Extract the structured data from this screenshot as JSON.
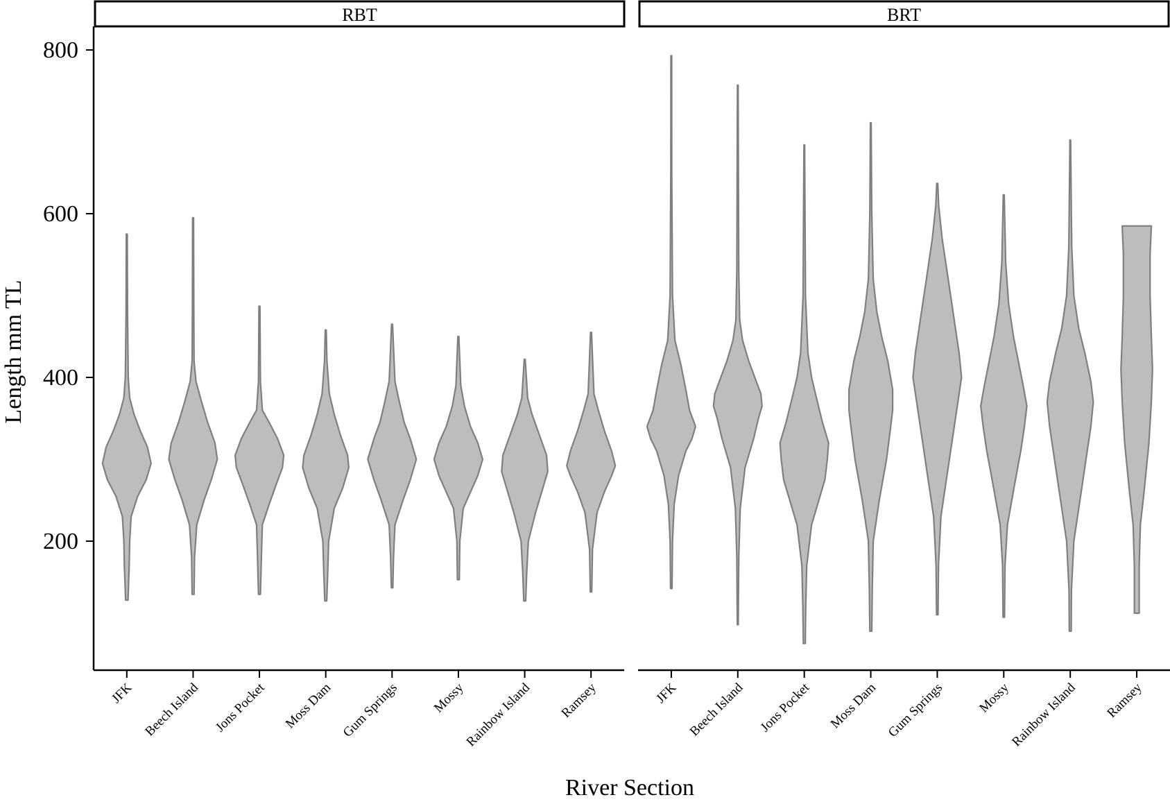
{
  "chart_data": {
    "type": "violin",
    "xlabel": "River Section",
    "ylabel": "Length mm TL",
    "ylim": [
      50,
      850
    ],
    "yticks": [
      200,
      400,
      600,
      800
    ],
    "categories": [
      "JFK",
      "Beech Island",
      "Jons Pocket",
      "Moss Dam",
      "Gum Springs",
      "Mossy",
      "Rainbow Island",
      "Ramsey"
    ],
    "panels": [
      {
        "label": "RBT",
        "violins": [
          {
            "category": "JFK",
            "min": 128,
            "max": 575,
            "profile": [
              [
                128,
                0.05
              ],
              [
                170,
                0.1
              ],
              [
                200,
                0.12
              ],
              [
                230,
                0.18
              ],
              [
                255,
                0.45
              ],
              [
                275,
                0.8
              ],
              [
                295,
                1.0
              ],
              [
                315,
                0.85
              ],
              [
                335,
                0.55
              ],
              [
                355,
                0.3
              ],
              [
                375,
                0.12
              ],
              [
                400,
                0.06
              ],
              [
                480,
                0.03
              ],
              [
                575,
                0.02
              ]
            ]
          },
          {
            "category": "Beech Island",
            "min": 135,
            "max": 595,
            "profile": [
              [
                135,
                0.04
              ],
              [
                180,
                0.06
              ],
              [
                220,
                0.15
              ],
              [
                250,
                0.45
              ],
              [
                275,
                0.75
              ],
              [
                300,
                1.0
              ],
              [
                320,
                0.9
              ],
              [
                345,
                0.6
              ],
              [
                370,
                0.35
              ],
              [
                395,
                0.12
              ],
              [
                420,
                0.04
              ],
              [
                480,
                0.03
              ],
              [
                595,
                0.02
              ]
            ]
          },
          {
            "category": "Jons Pocket",
            "min": 135,
            "max": 487,
            "profile": [
              [
                135,
                0.04
              ],
              [
                180,
                0.08
              ],
              [
                220,
                0.12
              ],
              [
                245,
                0.4
              ],
              [
                270,
                0.7
              ],
              [
                290,
                0.95
              ],
              [
                305,
                1.0
              ],
              [
                325,
                0.75
              ],
              [
                345,
                0.4
              ],
              [
                360,
                0.12
              ],
              [
                395,
                0.04
              ],
              [
                487,
                0.02
              ]
            ]
          },
          {
            "category": "Moss Dam",
            "min": 127,
            "max": 458,
            "profile": [
              [
                127,
                0.04
              ],
              [
                160,
                0.08
              ],
              [
                200,
                0.12
              ],
              [
                240,
                0.35
              ],
              [
                265,
                0.7
              ],
              [
                290,
                0.95
              ],
              [
                305,
                0.9
              ],
              [
                330,
                0.6
              ],
              [
                355,
                0.35
              ],
              [
                380,
                0.15
              ],
              [
                420,
                0.05
              ],
              [
                458,
                0.02
              ]
            ]
          },
          {
            "category": "Gum Springs",
            "min": 143,
            "max": 465,
            "profile": [
              [
                143,
                0.03
              ],
              [
                180,
                0.06
              ],
              [
                220,
                0.12
              ],
              [
                250,
                0.45
              ],
              [
                275,
                0.75
              ],
              [
                300,
                1.0
              ],
              [
                325,
                0.75
              ],
              [
                345,
                0.5
              ],
              [
                370,
                0.3
              ],
              [
                395,
                0.12
              ],
              [
                465,
                0.02
              ]
            ]
          },
          {
            "category": "Mossy",
            "min": 153,
            "max": 450,
            "profile": [
              [
                153,
                0.04
              ],
              [
                200,
                0.06
              ],
              [
                240,
                0.2
              ],
              [
                260,
                0.5
              ],
              [
                280,
                0.8
              ],
              [
                300,
                1.0
              ],
              [
                320,
                0.8
              ],
              [
                340,
                0.5
              ],
              [
                365,
                0.25
              ],
              [
                390,
                0.1
              ],
              [
                450,
                0.02
              ]
            ]
          },
          {
            "category": "Rainbow Island",
            "min": 127,
            "max": 422,
            "profile": [
              [
                127,
                0.04
              ],
              [
                160,
                0.08
              ],
              [
                200,
                0.15
              ],
              [
                235,
                0.45
              ],
              [
                265,
                0.75
              ],
              [
                285,
                0.95
              ],
              [
                305,
                0.9
              ],
              [
                330,
                0.6
              ],
              [
                355,
                0.3
              ],
              [
                375,
                0.12
              ],
              [
                422,
                0.02
              ]
            ]
          },
          {
            "category": "Ramsey",
            "min": 138,
            "max": 455,
            "profile": [
              [
                138,
                0.03
              ],
              [
                190,
                0.06
              ],
              [
                235,
                0.25
              ],
              [
                260,
                0.55
              ],
              [
                280,
                0.85
              ],
              [
                292,
                1.0
              ],
              [
                310,
                0.85
              ],
              [
                335,
                0.55
              ],
              [
                360,
                0.3
              ],
              [
                380,
                0.12
              ],
              [
                455,
                0.02
              ]
            ]
          }
        ]
      },
      {
        "label": "BRT",
        "violins": [
          {
            "category": "JFK",
            "min": 142,
            "max": 793,
            "profile": [
              [
                142,
                0.03
              ],
              [
                200,
                0.05
              ],
              [
                245,
                0.12
              ],
              [
                280,
                0.3
              ],
              [
                310,
                0.6
              ],
              [
                325,
                0.85
              ],
              [
                340,
                1.0
              ],
              [
                360,
                0.75
              ],
              [
                385,
                0.6
              ],
              [
                415,
                0.4
              ],
              [
                445,
                0.15
              ],
              [
                500,
                0.05
              ],
              [
                650,
                0.02
              ],
              [
                793,
                0.015
              ]
            ]
          },
          {
            "category": "Beech Island",
            "min": 98,
            "max": 757,
            "profile": [
              [
                98,
                0.02
              ],
              [
                180,
                0.04
              ],
              [
                240,
                0.1
              ],
              [
                290,
                0.3
              ],
              [
                325,
                0.65
              ],
              [
                350,
                0.85
              ],
              [
                365,
                1.0
              ],
              [
                380,
                0.95
              ],
              [
                400,
                0.7
              ],
              [
                420,
                0.45
              ],
              [
                445,
                0.2
              ],
              [
                470,
                0.08
              ],
              [
                530,
                0.04
              ],
              [
                757,
                0.015
              ]
            ]
          },
          {
            "category": "Jons Pocket",
            "min": 75,
            "max": 684,
            "profile": [
              [
                75,
                0.04
              ],
              [
                120,
                0.06
              ],
              [
                170,
                0.1
              ],
              [
                220,
                0.3
              ],
              [
                250,
                0.6
              ],
              [
                275,
                0.85
              ],
              [
                300,
                0.95
              ],
              [
                320,
                1.0
              ],
              [
                345,
                0.75
              ],
              [
                375,
                0.5
              ],
              [
                400,
                0.3
              ],
              [
                430,
                0.15
              ],
              [
                500,
                0.05
              ],
              [
                684,
                0.015
              ]
            ]
          },
          {
            "category": "Moss Dam",
            "min": 90,
            "max": 711,
            "profile": [
              [
                90,
                0.04
              ],
              [
                140,
                0.06
              ],
              [
                200,
                0.1
              ],
              [
                250,
                0.35
              ],
              [
                300,
                0.65
              ],
              [
                335,
                0.8
              ],
              [
                360,
                0.9
              ],
              [
                385,
                0.9
              ],
              [
                420,
                0.7
              ],
              [
                450,
                0.45
              ],
              [
                480,
                0.25
              ],
              [
                520,
                0.1
              ],
              [
                600,
                0.04
              ],
              [
                711,
                0.015
              ]
            ]
          },
          {
            "category": "Gum Springs",
            "min": 110,
            "max": 637,
            "profile": [
              [
                110,
                0.03
              ],
              [
                170,
                0.05
              ],
              [
                230,
                0.15
              ],
              [
                280,
                0.4
              ],
              [
                330,
                0.65
              ],
              [
                370,
                0.85
              ],
              [
                400,
                1.0
              ],
              [
                430,
                0.9
              ],
              [
                470,
                0.7
              ],
              [
                520,
                0.45
              ],
              [
                570,
                0.2
              ],
              [
                610,
                0.06
              ],
              [
                637,
                0.02
              ]
            ]
          },
          {
            "category": "Mossy",
            "min": 107,
            "max": 623,
            "profile": [
              [
                107,
                0.03
              ],
              [
                170,
                0.05
              ],
              [
                220,
                0.15
              ],
              [
                270,
                0.45
              ],
              [
                310,
                0.7
              ],
              [
                340,
                0.85
              ],
              [
                365,
                0.95
              ],
              [
                390,
                0.8
              ],
              [
                420,
                0.6
              ],
              [
                450,
                0.4
              ],
              [
                490,
                0.2
              ],
              [
                540,
                0.08
              ],
              [
                623,
                0.02
              ]
            ]
          },
          {
            "category": "Rainbow Island",
            "min": 90,
            "max": 690,
            "profile": [
              [
                90,
                0.04
              ],
              [
                140,
                0.05
              ],
              [
                200,
                0.15
              ],
              [
                250,
                0.4
              ],
              [
                300,
                0.65
              ],
              [
                340,
                0.85
              ],
              [
                370,
                0.95
              ],
              [
                395,
                0.85
              ],
              [
                430,
                0.6
              ],
              [
                460,
                0.35
              ],
              [
                500,
                0.15
              ],
              [
                560,
                0.06
              ],
              [
                690,
                0.015
              ]
            ]
          },
          {
            "category": "Ramsey",
            "min": 112,
            "max": 585,
            "profile": [
              [
                112,
                0.1
              ],
              [
                170,
                0.1
              ],
              [
                220,
                0.15
              ],
              [
                260,
                0.3
              ],
              [
                320,
                0.5
              ],
              [
                370,
                0.6
              ],
              [
                410,
                0.65
              ],
              [
                450,
                0.6
              ],
              [
                500,
                0.55
              ],
              [
                550,
                0.55
              ],
              [
                585,
                0.6
              ]
            ]
          }
        ]
      }
    ]
  }
}
